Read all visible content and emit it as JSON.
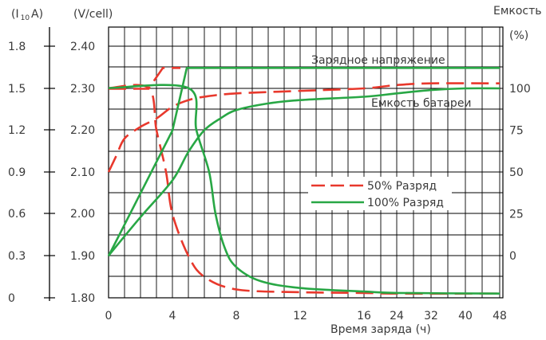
{
  "chart_data": {
    "type": "line",
    "title": "",
    "x_axis": {
      "label": "Время заряда (ч)",
      "ticks": [
        "0",
        "4",
        "8",
        "12",
        "16",
        "24",
        "32",
        "40",
        "48"
      ]
    },
    "y_axes": {
      "current": {
        "unit": "(I₁₀A)",
        "unit_main": "(I",
        "unit_sub": "10",
        "unit_end": "A)",
        "ticks": [
          "0",
          "0.3",
          "0.6",
          "0.9",
          "1.2",
          "1.5",
          "1.8"
        ],
        "range": [
          0,
          1.8
        ]
      },
      "voltage": {
        "unit": "(V/cell)",
        "ticks": [
          "1.80",
          "1.90",
          "2.00",
          "2.10",
          "2.20",
          "2.30",
          "2.40"
        ],
        "range": [
          1.8,
          2.45
        ]
      },
      "capacity": {
        "title": "Емкость",
        "unit": "(%)",
        "ticks": [
          "0",
          "25",
          "50",
          "75",
          "100"
        ]
      }
    },
    "grid": true,
    "colors": {
      "discharge_50": "#e8382c",
      "discharge_100": "#28a745",
      "grid": "#000000"
    },
    "annotations": [
      {
        "text": "Зарядное напряжение"
      },
      {
        "text": "Емкость батареи"
      }
    ],
    "legend": {
      "position": "center-right",
      "entries": [
        {
          "label": "50% Разряд",
          "style": "dashed",
          "color": "#e8382c"
        },
        {
          "label": "100% Разряд",
          "style": "solid",
          "color": "#28a745"
        }
      ]
    },
    "series": [
      {
        "name": "50% Разряд",
        "kind": "voltage",
        "axis": "voltage",
        "points": [
          [
            0,
            2.3
          ],
          [
            2.5,
            2.3
          ],
          [
            3.4,
            2.35
          ],
          [
            4.5,
            2.35
          ]
        ]
      },
      {
        "name": "50% Разряд",
        "kind": "current",
        "axis": "current",
        "points": [
          [
            0,
            1.5
          ],
          [
            2.5,
            1.5
          ],
          [
            3.0,
            1.2
          ],
          [
            3.6,
            0.9
          ],
          [
            4.0,
            0.6
          ],
          [
            5.0,
            0.3
          ],
          [
            6.0,
            0.15
          ],
          [
            8,
            0.06
          ],
          [
            12,
            0.04
          ],
          [
            16,
            0.035
          ],
          [
            24,
            0.03
          ],
          [
            48,
            0.03
          ]
        ]
      },
      {
        "name": "50% Разряд",
        "kind": "capacity",
        "axis": "capacity",
        "points": [
          [
            0,
            50
          ],
          [
            0.5,
            60
          ],
          [
            1.0,
            70
          ],
          [
            2.0,
            77
          ],
          [
            3.0,
            82
          ],
          [
            4.0,
            89
          ],
          [
            5.0,
            93
          ],
          [
            6.0,
            95
          ],
          [
            8.0,
            97
          ],
          [
            12.0,
            98.5
          ],
          [
            16.0,
            100
          ],
          [
            24.0,
            102
          ],
          [
            32.0,
            103
          ],
          [
            48.0,
            103
          ]
        ]
      },
      {
        "name": "100% Разряд",
        "kind": "voltage",
        "axis": "voltage",
        "points": [
          [
            0,
            1.9
          ],
          [
            4.0,
            2.2
          ],
          [
            4.9,
            2.35
          ],
          [
            48,
            2.35
          ]
        ]
      },
      {
        "name": "100% Разряд",
        "kind": "current",
        "axis": "current",
        "points": [
          [
            0,
            1.5
          ],
          [
            5.0,
            1.5
          ],
          [
            5.5,
            1.2
          ],
          [
            6.3,
            0.9
          ],
          [
            6.7,
            0.6
          ],
          [
            7.3,
            0.35
          ],
          [
            8.0,
            0.22
          ],
          [
            9.5,
            0.12
          ],
          [
            12,
            0.07
          ],
          [
            16,
            0.045
          ],
          [
            24,
            0.035
          ],
          [
            48,
            0.03
          ]
        ]
      },
      {
        "name": "100% Разряд",
        "kind": "capacity",
        "axis": "capacity",
        "points": [
          [
            0,
            0
          ],
          [
            2.0,
            23
          ],
          [
            4.0,
            45
          ],
          [
            5.0,
            62
          ],
          [
            6.0,
            75
          ],
          [
            7.0,
            82
          ],
          [
            8.0,
            87
          ],
          [
            10.0,
            91
          ],
          [
            12.0,
            93
          ],
          [
            16.0,
            95
          ],
          [
            24.0,
            97
          ],
          [
            32.0,
            99
          ],
          [
            40.0,
            100
          ],
          [
            48.0,
            100
          ]
        ]
      }
    ]
  }
}
